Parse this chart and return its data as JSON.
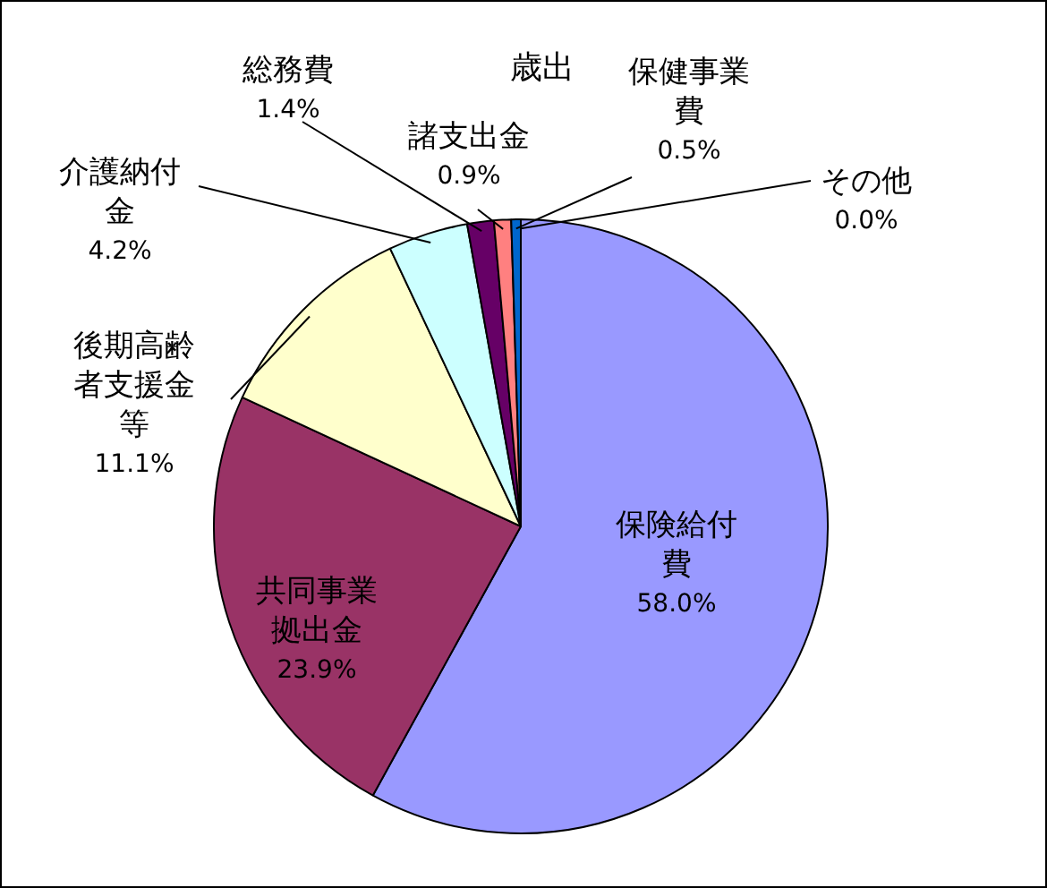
{
  "chart_data": {
    "type": "pie",
    "title": "歳出",
    "categories": [
      "保険給付費",
      "共同事業拠出金",
      "後期高齢者支援金等",
      "介護納付金",
      "総務費",
      "諸支出金",
      "保健事業費",
      "その他"
    ],
    "values": [
      58.0,
      23.9,
      11.1,
      4.2,
      1.4,
      0.9,
      0.5,
      0.0
    ],
    "value_labels": [
      "58.0%",
      "23.9%",
      "11.1%",
      "4.2%",
      "1.4%",
      "0.9%",
      "0.5%",
      "0.0%"
    ],
    "colors": [
      "#9999ff",
      "#993366",
      "#ffffcc",
      "#ccffff",
      "#660066",
      "#ff8080",
      "#0066cc",
      "#ccffcc"
    ],
    "legend": false
  }
}
